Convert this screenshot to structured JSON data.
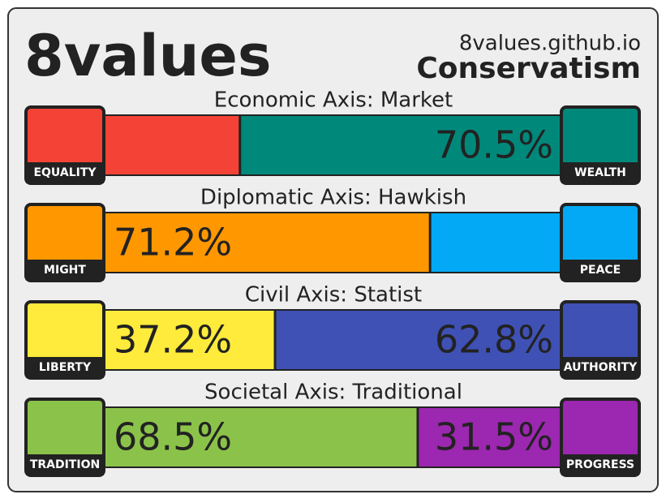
{
  "header": {
    "title": "8values",
    "site": "8values.github.io",
    "ideology": "Conservatism"
  },
  "axes": [
    {
      "title": "Economic Axis: Market",
      "left": {
        "name": "EQUALITY",
        "value": 29.5,
        "color": "#f44336"
      },
      "right": {
        "name": "WEALTH",
        "value": 70.5,
        "label": "70.5%",
        "color": "#00897b"
      }
    },
    {
      "title": "Diplomatic Axis: Hawkish",
      "left": {
        "name": "MIGHT",
        "value": 71.2,
        "label": "71.2%",
        "color": "#ff9800"
      },
      "right": {
        "name": "PEACE",
        "value": 28.8,
        "color": "#03a9f4"
      }
    },
    {
      "title": "Civil Axis: Statist",
      "left": {
        "name": "LIBERTY",
        "value": 37.2,
        "label": "37.2%",
        "color": "#ffeb3b"
      },
      "right": {
        "name": "AUTHORITY",
        "value": 62.8,
        "label": "62.8%",
        "color": "#3f51b5"
      }
    },
    {
      "title": "Societal Axis: Traditional",
      "left": {
        "name": "TRADITION",
        "value": 68.5,
        "label": "68.5%",
        "color": "#8bc34a"
      },
      "right": {
        "name": "PROGRESS",
        "value": 31.5,
        "label": "31.5%",
        "color": "#9c27b0"
      }
    }
  ]
}
